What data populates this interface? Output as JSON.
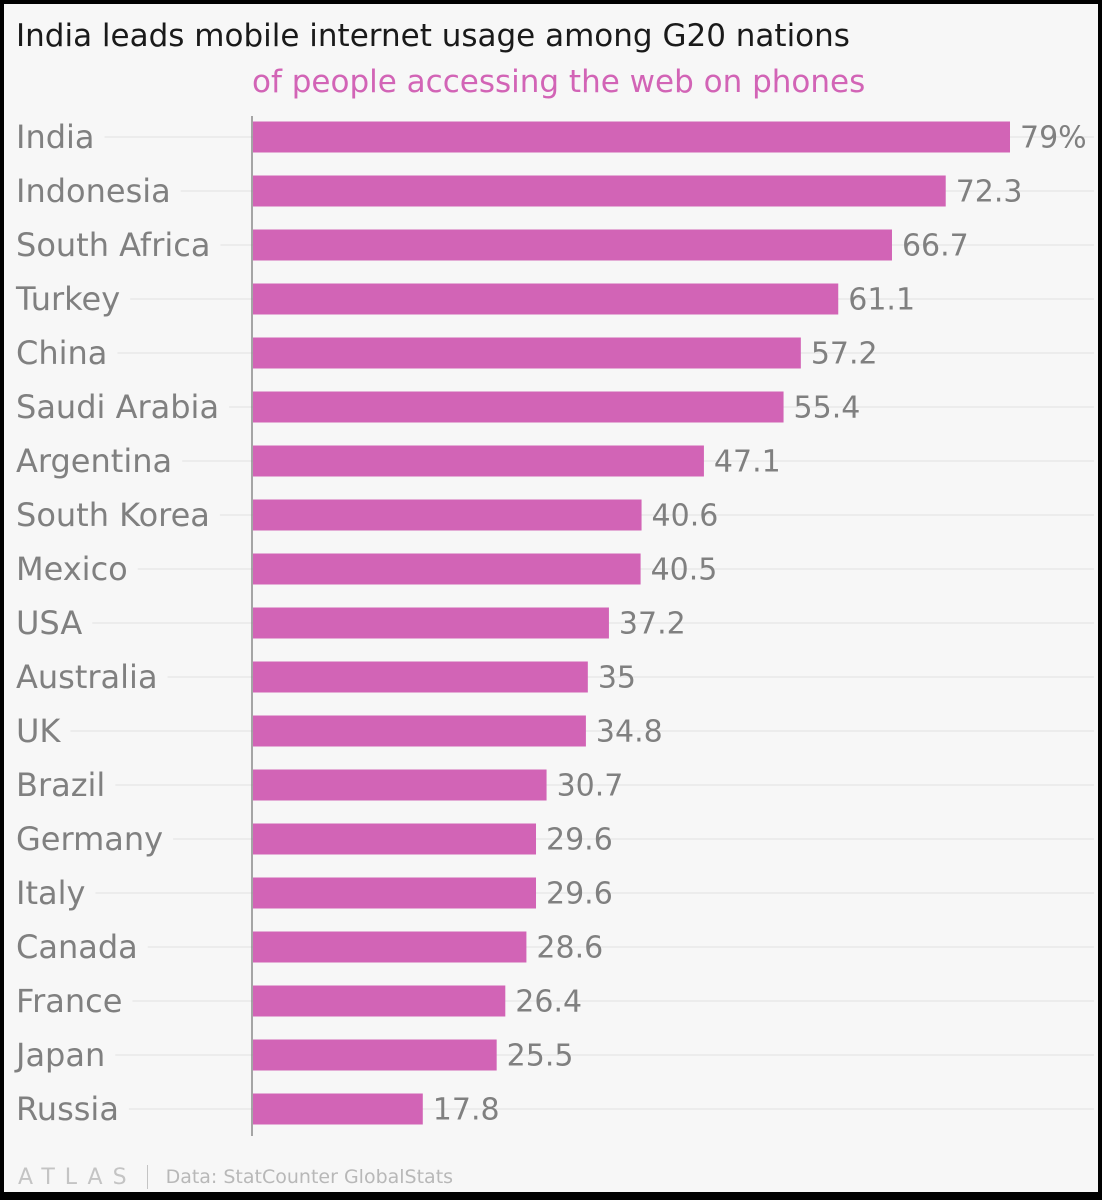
{
  "chart_data": {
    "type": "bar",
    "orientation": "horizontal",
    "title": "India leads mobile internet usage among G20 nations",
    "subtitle": "of people accessing the web on phones",
    "categories": [
      "India",
      "Indonesia",
      "South Africa",
      "Turkey",
      "China",
      "Saudi Arabia",
      "Argentina",
      "South Korea",
      "Mexico",
      "USA",
      "Australia",
      "UK",
      "Brazil",
      "Germany",
      "Italy",
      "Canada",
      "France",
      "Japan",
      "Russia"
    ],
    "values": [
      79,
      72.3,
      66.7,
      61.1,
      57.2,
      55.4,
      47.1,
      40.6,
      40.5,
      37.2,
      35,
      34.8,
      30.7,
      29.6,
      29.6,
      28.6,
      26.4,
      25.5,
      17.8
    ],
    "value_labels": [
      "79%",
      "72.3",
      "66.7",
      "61.1",
      "57.2",
      "55.4",
      "47.1",
      "40.6",
      "40.5",
      "37.2",
      "35",
      "34.8",
      "30.7",
      "29.6",
      "29.6",
      "28.6",
      "26.4",
      "25.5",
      "17.8"
    ],
    "xlim": [
      0,
      80
    ],
    "bar_color": "#d264b6",
    "grid": true
  },
  "footer": {
    "logo": "ATLAS",
    "source": "Data: StatCounter GlobalStats"
  }
}
